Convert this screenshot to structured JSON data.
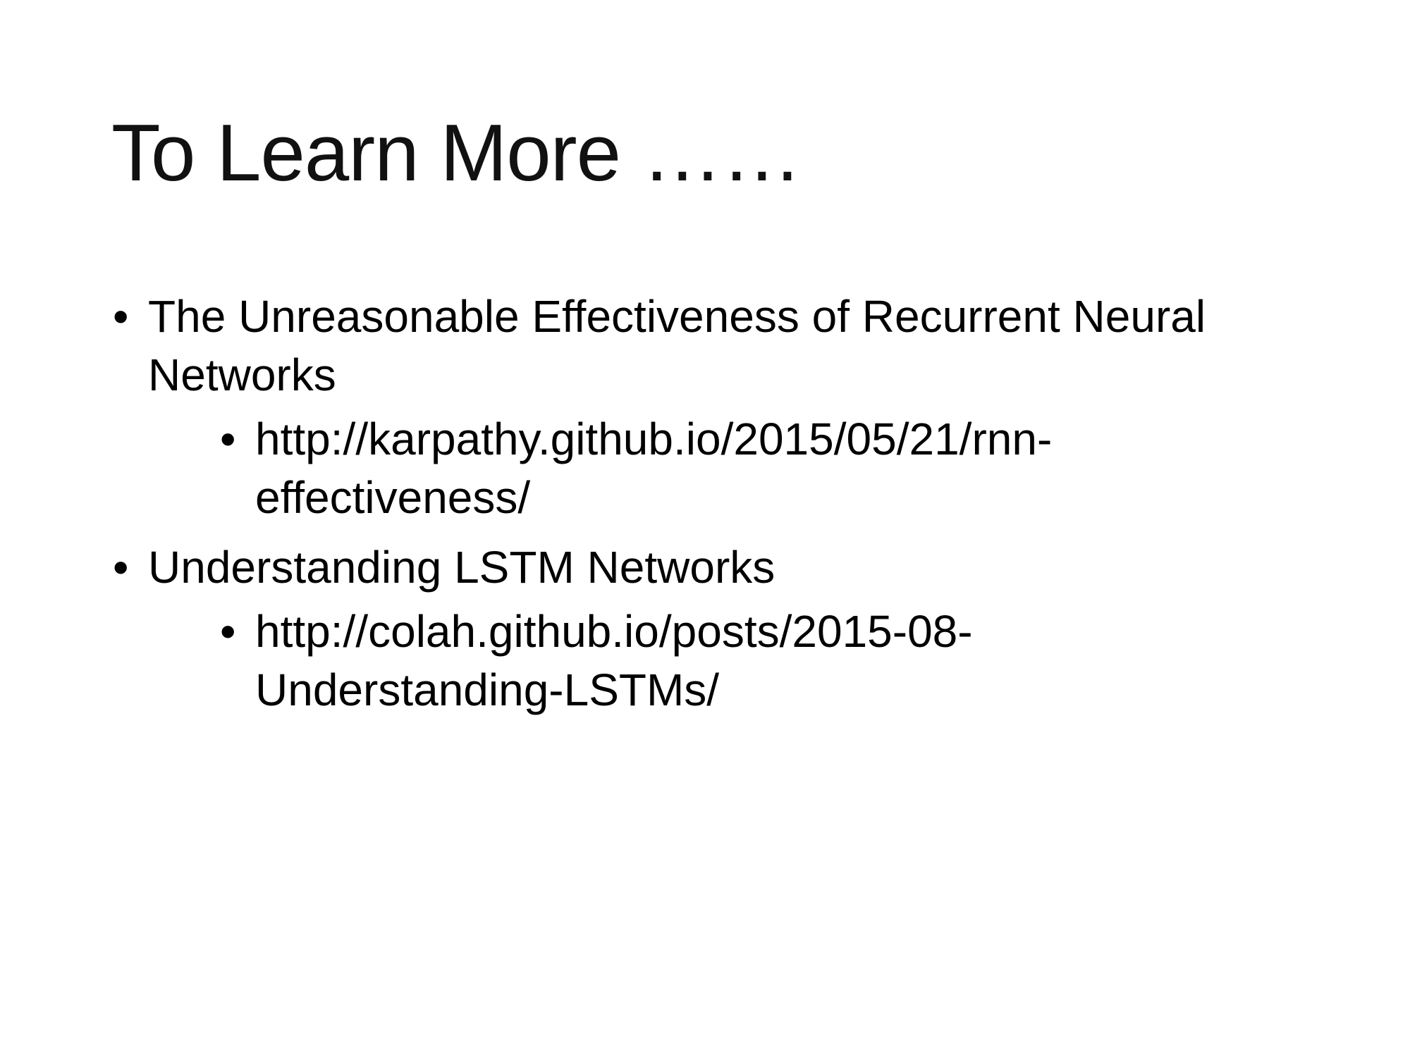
{
  "slide": {
    "title": "To Learn More ……",
    "items": [
      {
        "bullet": "•",
        "text": "The Unreasonable Effectiveness of Recurrent Neural Networks",
        "sub": {
          "bullet": "•",
          "text": "http://karpathy.github.io/2015/05/21/rnn-effectiveness/"
        }
      },
      {
        "bullet": "•",
        "text": "Understanding LSTM Networks",
        "sub": {
          "bullet": "•",
          "text": "http://colah.github.io/posts/2015-08-Understanding-LSTMs/"
        }
      }
    ]
  }
}
